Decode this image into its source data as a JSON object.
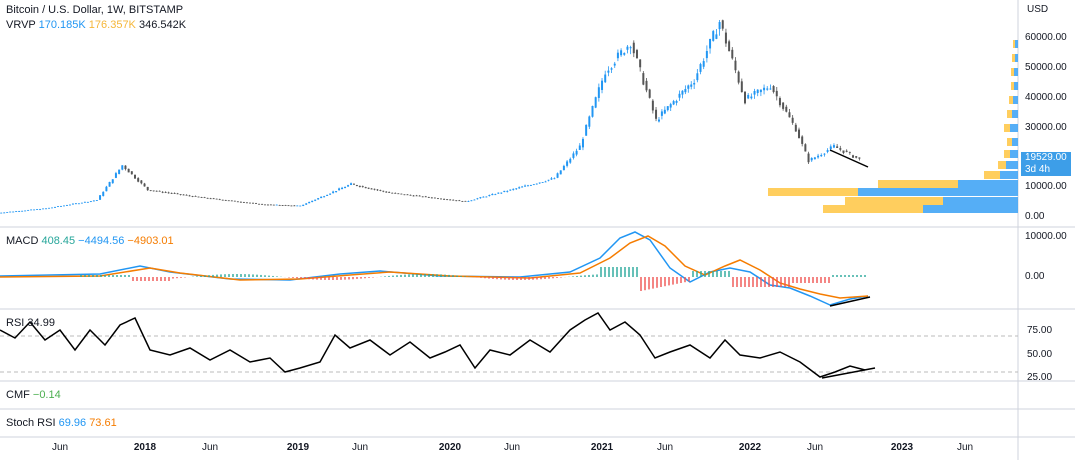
{
  "header": {
    "title": "Bitcoin / U.S. Dollar, 1W, BITSTAMP",
    "vrvp": {
      "label": "VRVP",
      "v1": "170.185K",
      "v2": "176.357K",
      "v3": "346.542K"
    }
  },
  "price_axis": {
    "currency": "USD",
    "ticks": [
      "60000.00",
      "50000.00",
      "40000.00",
      "30000.00",
      "10000.00",
      "0.00"
    ]
  },
  "last_price": {
    "value": "19529.00",
    "countdown": "3d 4h"
  },
  "macd": {
    "label": "MACD",
    "v1": "408.45",
    "v2": "−4494.56",
    "v3": "−4903.01",
    "ticks": [
      "10000.00",
      "0.00"
    ]
  },
  "rsi": {
    "label": "RSI",
    "value": "34.99",
    "ticks": [
      "75.00",
      "50.00",
      "25.00"
    ]
  },
  "cmf": {
    "label": "CMF",
    "value": "−0.14"
  },
  "stoch_rsi": {
    "label": "Stoch RSI",
    "k": "69.96",
    "d": "73.61"
  },
  "time_axis": [
    {
      "label": "Jun",
      "major": false
    },
    {
      "label": "2018",
      "major": true
    },
    {
      "label": "Jun",
      "major": false
    },
    {
      "label": "2019",
      "major": true
    },
    {
      "label": "Jun",
      "major": false
    },
    {
      "label": "2020",
      "major": true
    },
    {
      "label": "Jun",
      "major": false
    },
    {
      "label": "2021",
      "major": true
    },
    {
      "label": "Jun",
      "major": false
    },
    {
      "label": "2022",
      "major": true
    },
    {
      "label": "Jun",
      "major": false
    },
    {
      "label": "2023",
      "major": true
    },
    {
      "label": "Jun",
      "major": false
    }
  ],
  "colors": {
    "up": "#2196f3",
    "down": "#555555",
    "macd": "#2196f3",
    "signal": "#f57c00",
    "hist_pos": "#26a69a",
    "hist_neg": "#ef5350",
    "vrvp_up": "#42a5f5",
    "vrvp_down": "#ffc94d",
    "rsi": "#000000"
  },
  "chart_data": {
    "type": "line",
    "symbol": "Bitcoin / U.S. Dollar, 1W, BITSTAMP",
    "price": {
      "x": [
        "2017-02",
        "2017-06",
        "2017-10",
        "2017-12",
        "2018-02",
        "2018-06",
        "2018-11",
        "2019-02",
        "2019-06",
        "2019-09",
        "2020-03",
        "2020-07",
        "2020-10",
        "2020-12",
        "2021-02",
        "2021-04",
        "2021-06",
        "2021-09",
        "2021-11",
        "2022-01",
        "2022-03",
        "2022-05",
        "2022-06",
        "2022-08",
        "2022-10"
      ],
      "y": [
        1000,
        2600,
        5500,
        17500,
        9000,
        6500,
        4000,
        3500,
        11000,
        8000,
        5000,
        9500,
        13000,
        24000,
        50000,
        60000,
        33000,
        47000,
        67000,
        40000,
        45000,
        30000,
        19000,
        24000,
        19529
      ],
      "ylim": [
        0,
        70000
      ]
    },
    "macd": {
      "macd": 408.45,
      "signal": -4494.56,
      "histogram": -4903.01
    },
    "rsi": {
      "value": 34.99,
      "levels": [
        75,
        50,
        25
      ]
    },
    "cmf": {
      "value": -0.14
    },
    "stoch_rsi": {
      "k": 69.96,
      "d": 73.61
    },
    "volume_profile": {
      "up": "170.185K",
      "down": "176.357K",
      "total": "346.542K"
    }
  }
}
